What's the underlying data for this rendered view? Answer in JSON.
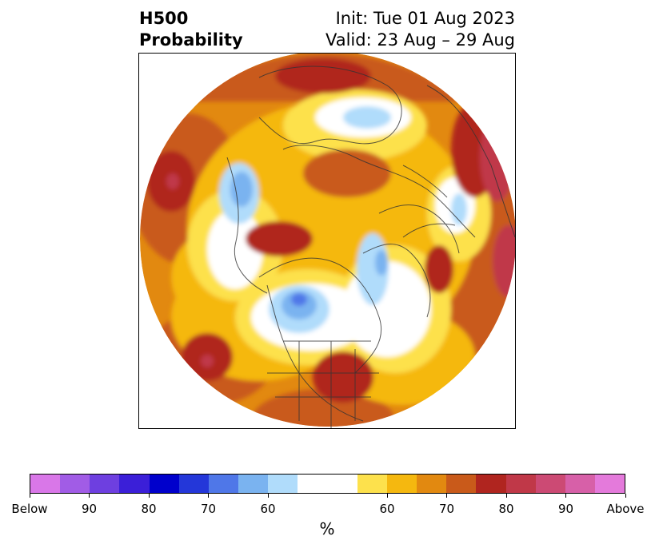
{
  "title": {
    "left_line1": "H500",
    "left_line2": "Probability",
    "right_line1": "Init: Tue 01 Aug 2023",
    "right_line2": "Valid: 23 Aug – 29 Aug"
  },
  "colorbar": {
    "colors": [
      "#d977e8",
      "#a15ce6",
      "#6e3fe0",
      "#3b1fd8",
      "#0000cc",
      "#2437d9",
      "#4f77e8",
      "#7ab3f0",
      "#b0dcfb",
      "#ffffff",
      "#ffffff",
      "#fde14c",
      "#f5b80f",
      "#e28910",
      "#c95a1a",
      "#b0251f",
      "#c03848",
      "#cc4a74",
      "#d760a8",
      "#e47adb"
    ],
    "tick_labels": [
      "Below",
      "90",
      "80",
      "70",
      "60",
      "60",
      "70",
      "80",
      "90",
      "Above"
    ],
    "unit_label": "%"
  }
}
